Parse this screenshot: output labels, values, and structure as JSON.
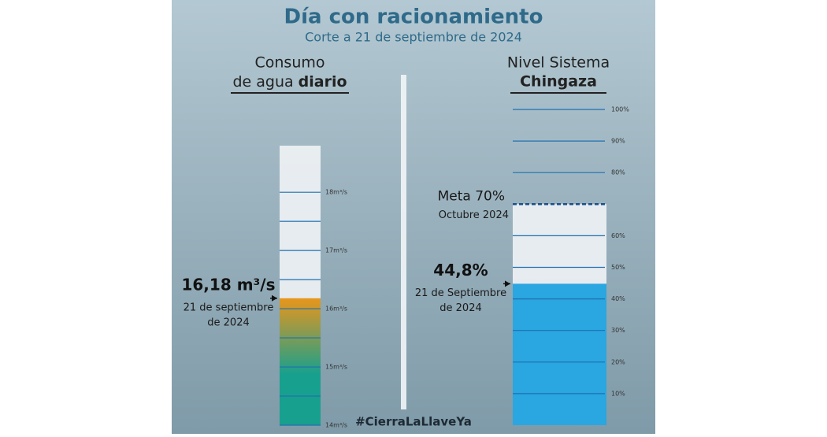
{
  "page": {
    "title": "Día con racionamiento",
    "subtitle": "Corte a 21 de septiembre de 2024",
    "hashtag": "#CierraLaLlaveYa"
  },
  "chart_data": [
    {
      "type": "gauge",
      "title_line1": "Consumo",
      "title_line2": "de agua",
      "title_bold": "diario",
      "values": [
        16.18
      ],
      "value_labels": [
        "16,18 m³/s"
      ],
      "date_lines": [
        "21 de septiembre",
        "de 2024"
      ],
      "colors": [
        "#e8961c",
        "#17a08e"
      ],
      "ylim": [
        14,
        18.8
      ],
      "yticks": [
        {
          "value": 14,
          "label": "14m³/s"
        },
        {
          "value": 15,
          "label": "15m³/s"
        },
        {
          "value": 16,
          "label": "16m³/s"
        },
        {
          "value": 17,
          "label": "17m³/s"
        },
        {
          "value": 18,
          "label": "18m³/s"
        }
      ],
      "minor_yticks": [
        14.5,
        15.5,
        16.5,
        17.5
      ]
    },
    {
      "type": "gauge",
      "title_line1": "Nivel Sistema",
      "title_bold": "Chingaza",
      "values": [
        44.8
      ],
      "value_labels": [
        "44,8%"
      ],
      "date_lines": [
        "21 de Septiembre",
        "de 2024"
      ],
      "colors": [
        "#2aa6e0"
      ],
      "ylim": [
        0,
        100
      ],
      "yticks": [
        {
          "value": 10,
          "label": "10%"
        },
        {
          "value": 20,
          "label": "20%"
        },
        {
          "value": 30,
          "label": "30%"
        },
        {
          "value": 40,
          "label": "40%"
        },
        {
          "value": 50,
          "label": "50%"
        },
        {
          "value": 60,
          "label": "60%"
        },
        {
          "value": 80,
          "label": "80%"
        },
        {
          "value": 90,
          "label": "90%"
        },
        {
          "value": 100,
          "label": "100%"
        }
      ],
      "target": {
        "value": 70,
        "label": "Meta 70%",
        "sublabel": "Octubre 2024"
      }
    }
  ]
}
